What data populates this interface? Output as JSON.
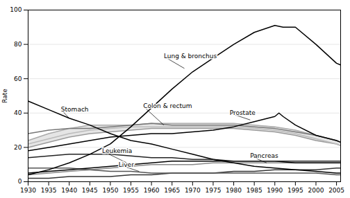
{
  "chart_data": {
    "type": "line",
    "ylabel": "Rate",
    "xlim": [
      1930,
      2006
    ],
    "ylim": [
      0,
      100
    ],
    "xticks": [
      1930,
      1935,
      1940,
      1945,
      1950,
      1955,
      1960,
      1965,
      1970,
      1975,
      1980,
      1985,
      1990,
      1995,
      2000,
      2005
    ],
    "yticks": [
      0,
      20,
      40,
      60,
      80,
      100
    ],
    "grid": true,
    "series": [
      {
        "type": "area",
        "color": "#cccccc",
        "x": [
          1930,
          1935,
          1940,
          1945,
          1950,
          1955,
          1960,
          1965,
          1970,
          1975,
          1980,
          1985,
          1990,
          1995,
          2000,
          2005,
          2006
        ],
        "values": [
          24,
          28,
          31,
          33,
          33,
          33,
          34,
          34,
          34,
          34,
          34,
          33,
          32,
          30,
          27,
          24,
          23
        ],
        "lower": [
          20,
          23,
          26,
          28,
          29,
          30,
          31,
          31,
          31,
          31,
          31,
          30,
          29,
          27,
          24,
          22,
          21
        ]
      },
      {
        "color": "#333333",
        "x": [
          1930,
          1935,
          1940,
          1945,
          1950,
          1955,
          1960,
          1965,
          1970,
          1975,
          1980,
          1985,
          1990,
          1995,
          2000,
          2005,
          2006
        ],
        "values": [
          2,
          2,
          3,
          3,
          3,
          4,
          4,
          5,
          5,
          5,
          6,
          6,
          7,
          7,
          7,
          8,
          8
        ]
      },
      {
        "color": "#999999",
        "x": [
          1930,
          1935,
          1940,
          1945,
          1950,
          1955,
          1960,
          1965,
          1970,
          1975,
          1980,
          1985,
          1990,
          1995,
          2000,
          2005,
          2006
        ],
        "values": [
          20,
          23,
          26,
          28,
          29,
          30,
          31,
          31,
          31,
          31,
          31,
          30,
          29,
          27,
          24,
          22,
          21
        ]
      },
      {
        "color": "#bbbbbb",
        "x": [
          1930,
          1935,
          1940,
          1945,
          1950,
          1955,
          1960,
          1965,
          1970,
          1975,
          1980,
          1985,
          1990,
          1995,
          2000,
          2005,
          2006
        ],
        "values": [
          22,
          25,
          28,
          30,
          31,
          32,
          32,
          32,
          32,
          32,
          32,
          31,
          30,
          28,
          25,
          22,
          21
        ]
      },
      {
        "color": "#aaaaaa",
        "x": [
          1930,
          1935,
          1940,
          1945,
          1950,
          1955,
          1960,
          1965,
          1970,
          1975,
          1980,
          1985,
          1990,
          1995,
          2000,
          2005,
          2006
        ],
        "values": [
          24,
          28,
          31,
          33,
          33,
          33,
          34,
          34,
          34,
          34,
          34,
          33,
          32,
          30,
          27,
          24,
          23
        ]
      },
      {
        "name": "Pancreas",
        "color": "#888888",
        "x": [
          1930,
          1935,
          1940,
          1945,
          1950,
          1955,
          1960,
          1965,
          1970,
          1975,
          1980,
          1985,
          1990,
          1995,
          2000,
          2005,
          2006
        ],
        "values": [
          4,
          5,
          6,
          7,
          8,
          9,
          10,
          10,
          10,
          11,
          11,
          11,
          11,
          11,
          11,
          11,
          11
        ]
      },
      {
        "name": "Liver",
        "color": "#555555",
        "x": [
          1930,
          1935,
          1940,
          1945,
          1950,
          1955,
          1960,
          1965,
          1970,
          1975,
          1980,
          1985,
          1990,
          1995,
          2000,
          2005,
          2006
        ],
        "values": [
          8,
          8,
          8,
          7,
          6,
          6,
          5,
          5,
          5,
          5,
          5,
          5,
          5,
          5,
          5,
          4,
          4
        ]
      },
      {
        "name": "Leukemia",
        "color": "#000000",
        "x": [
          1930,
          1935,
          1940,
          1945,
          1950,
          1955,
          1960,
          1965,
          1970,
          1975,
          1980,
          1985,
          1990,
          1995,
          2000,
          2005,
          2006
        ],
        "values": [
          5,
          6,
          7,
          8,
          9,
          10,
          11,
          12,
          12,
          12,
          12,
          12,
          12,
          11,
          11,
          11,
          11
        ]
      },
      {
        "color": "#222222",
        "x": [
          1930,
          1935,
          1940,
          1945,
          1950,
          1955,
          1960,
          1965,
          1970,
          1975,
          1980,
          1985,
          1990,
          1995,
          2000,
          2005,
          2006
        ],
        "values": [
          14,
          15,
          16,
          16,
          16,
          15,
          14,
          14,
          13,
          13,
          12,
          12,
          12,
          12,
          12,
          12,
          12
        ]
      },
      {
        "name": "Colon & rectum",
        "color": "#777777",
        "x": [
          1930,
          1935,
          1940,
          1945,
          1950,
          1955,
          1960,
          1965,
          1970,
          1975,
          1980,
          1985,
          1990,
          1995,
          2000,
          2005,
          2006
        ],
        "values": [
          28,
          30,
          31,
          31,
          32,
          33,
          34,
          33,
          33,
          33,
          33,
          32,
          31,
          29,
          27,
          24,
          23
        ]
      },
      {
        "name": "Prostate",
        "color": "#000000",
        "x": [
          1930,
          1935,
          1940,
          1945,
          1950,
          1955,
          1960,
          1965,
          1970,
          1975,
          1980,
          1985,
          1990,
          1991,
          1992,
          1995,
          2000,
          2005,
          2006
        ],
        "values": [
          18,
          20,
          22,
          24,
          26,
          27,
          28,
          28,
          29,
          30,
          32,
          35,
          38,
          40,
          38,
          33,
          27,
          24,
          23
        ]
      },
      {
        "name": "Stomach",
        "color": "#000000",
        "x": [
          1930,
          1935,
          1940,
          1945,
          1950,
          1955,
          1960,
          1965,
          1970,
          1975,
          1980,
          1985,
          1990,
          1995,
          2000,
          2005,
          2006
        ],
        "values": [
          47,
          42,
          37,
          33,
          28,
          24,
          22,
          19,
          16,
          13,
          11,
          9,
          8,
          7,
          6,
          5,
          5
        ]
      },
      {
        "name": "Lung & bronchus",
        "color": "#000000",
        "x": [
          1930,
          1935,
          1940,
          1945,
          1950,
          1955,
          1960,
          1965,
          1970,
          1975,
          1980,
          1985,
          1990,
          1992,
          1995,
          2000,
          2005,
          2006
        ],
        "values": [
          4,
          7,
          11,
          16,
          22,
          32,
          43,
          54,
          64,
          72,
          80,
          87,
          91,
          90,
          90,
          80,
          69,
          68
        ]
      }
    ],
    "annotations": [
      {
        "text": "Lung & bronchus",
        "xy": [
          1968,
          66
        ],
        "xytext": [
          1963,
          73
        ]
      },
      {
        "text": "Stomach",
        "xy": [
          1940,
          37
        ],
        "xytext": [
          1938,
          42
        ]
      },
      {
        "text": "Prostate",
        "xy": [
          1984,
          36
        ],
        "xytext": [
          1979,
          40
        ]
      },
      {
        "text": "Colon & rectum",
        "xy": [
          1963,
          33
        ],
        "xytext": [
          1958,
          44
        ]
      },
      {
        "text": "Leukemia",
        "xy": [
          1954,
          11
        ],
        "xytext": [
          1948,
          18
        ]
      },
      {
        "text": "Liver",
        "xy": [
          1957,
          6
        ],
        "xytext": [
          1952,
          10
        ]
      },
      {
        "text": "Pancreas",
        "xy": [
          1988,
          11
        ],
        "xytext": [
          1984,
          15
        ]
      }
    ]
  }
}
